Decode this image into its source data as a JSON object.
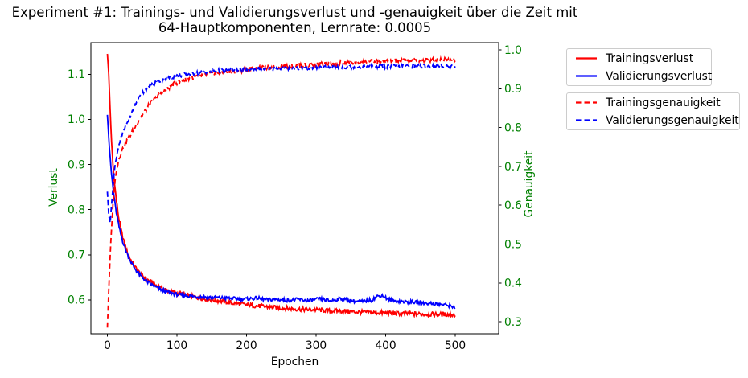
{
  "title": {
    "line1": "Experiment #1: Trainings- und Validierungsverlust und -genauigkeit über die Zeit mit",
    "line2": "64-Hauptkomponenten, Lernrate: 0.0005"
  },
  "colors": {
    "red": "#ff0000",
    "blue": "#0000ff",
    "green": "#008000",
    "black": "#000000",
    "legend_border": "#cccccc"
  },
  "legend": {
    "loss": [
      {
        "label": "Trainingsverlust",
        "color": "red",
        "style": "solid"
      },
      {
        "label": "Validierungsverlust",
        "color": "blue",
        "style": "solid"
      }
    ],
    "accuracy": [
      {
        "label": "Trainingsgenauigkeit",
        "color": "red",
        "style": "dashed"
      },
      {
        "label": "Validierungsgenauigkeit",
        "color": "blue",
        "style": "dashed"
      }
    ]
  },
  "chart_data": {
    "type": "line",
    "title": "Experiment #1: Trainings- und Validierungsverlust und -genauigkeit über die Zeit mit 64-Hauptkomponenten, Lernrate: 0.0005",
    "grid": false,
    "legend_position": "outside-right",
    "axes": {
      "x": {
        "label": "Epochen",
        "ticks": [
          "0",
          "100",
          "200",
          "300",
          "400",
          "500"
        ],
        "range": [
          -23.7,
          562.4
        ]
      },
      "y_left": {
        "label": "Verlust",
        "ticks": [
          "0.6",
          "0.7",
          "0.8",
          "0.9",
          "1.0",
          "1.1"
        ],
        "range": [
          0.525,
          1.17
        ]
      },
      "y_right": {
        "label": "Genauigkeit",
        "ticks": [
          "0.3",
          "0.4",
          "0.5",
          "0.6",
          "0.7",
          "0.8",
          "0.9",
          "1.0"
        ],
        "range": [
          0.269,
          1.019
        ]
      }
    },
    "series": [
      {
        "name": "Trainingsverlust",
        "axis": "left",
        "color": "#ff0000",
        "style": "solid",
        "noise": 0.005,
        "points": [
          [
            0,
            1.145
          ],
          [
            2,
            1.1
          ],
          [
            4,
            1.02
          ],
          [
            6,
            0.95
          ],
          [
            8,
            0.9
          ],
          [
            10,
            0.862
          ],
          [
            13,
            0.82
          ],
          [
            16,
            0.785
          ],
          [
            20,
            0.752
          ],
          [
            24,
            0.728
          ],
          [
            28,
            0.708
          ],
          [
            32,
            0.694
          ],
          [
            36,
            0.682
          ],
          [
            40,
            0.672
          ],
          [
            45,
            0.662
          ],
          [
            50,
            0.654
          ],
          [
            55,
            0.648
          ],
          [
            60,
            0.642
          ],
          [
            70,
            0.632
          ],
          [
            80,
            0.625
          ],
          [
            90,
            0.619
          ],
          [
            100,
            0.615
          ],
          [
            110,
            0.612
          ],
          [
            120,
            0.608
          ],
          [
            135,
            0.604
          ],
          [
            150,
            0.6
          ],
          [
            165,
            0.597
          ],
          [
            180,
            0.593
          ],
          [
            200,
            0.589
          ],
          [
            220,
            0.586
          ],
          [
            240,
            0.583
          ],
          [
            260,
            0.581
          ],
          [
            280,
            0.579
          ],
          [
            300,
            0.578
          ],
          [
            320,
            0.576
          ],
          [
            340,
            0.575
          ],
          [
            360,
            0.573
          ],
          [
            380,
            0.572
          ],
          [
            400,
            0.571
          ],
          [
            420,
            0.57
          ],
          [
            440,
            0.569
          ],
          [
            460,
            0.568
          ],
          [
            480,
            0.568
          ],
          [
            500,
            0.567
          ]
        ]
      },
      {
        "name": "Validierungsverlust",
        "axis": "left",
        "color": "#0000ff",
        "style": "solid",
        "noise": 0.004,
        "points": [
          [
            0,
            1.01
          ],
          [
            3,
            0.935
          ],
          [
            6,
            0.878
          ],
          [
            9,
            0.836
          ],
          [
            12,
            0.802
          ],
          [
            15,
            0.775
          ],
          [
            18,
            0.753
          ],
          [
            22,
            0.73
          ],
          [
            26,
            0.712
          ],
          [
            30,
            0.697
          ],
          [
            34,
            0.684
          ],
          [
            38,
            0.673
          ],
          [
            42,
            0.664
          ],
          [
            46,
            0.656
          ],
          [
            50,
            0.65
          ],
          [
            55,
            0.643
          ],
          [
            60,
            0.637
          ],
          [
            70,
            0.628
          ],
          [
            80,
            0.621
          ],
          [
            90,
            0.616
          ],
          [
            100,
            0.612
          ],
          [
            115,
            0.609
          ],
          [
            130,
            0.607
          ],
          [
            145,
            0.606
          ],
          [
            160,
            0.605
          ],
          [
            180,
            0.603
          ],
          [
            200,
            0.602
          ],
          [
            215,
            0.604
          ],
          [
            230,
            0.6
          ],
          [
            245,
            0.601
          ],
          [
            260,
            0.599
          ],
          [
            275,
            0.601
          ],
          [
            290,
            0.598
          ],
          [
            305,
            0.602
          ],
          [
            320,
            0.598
          ],
          [
            335,
            0.603
          ],
          [
            350,
            0.598
          ],
          [
            365,
            0.596
          ],
          [
            380,
            0.6
          ],
          [
            388,
            0.608
          ],
          [
            395,
            0.61
          ],
          [
            402,
            0.603
          ],
          [
            410,
            0.598
          ],
          [
            420,
            0.597
          ],
          [
            435,
            0.595
          ],
          [
            450,
            0.594
          ],
          [
            465,
            0.592
          ],
          [
            480,
            0.59
          ],
          [
            490,
            0.588
          ],
          [
            500,
            0.584
          ]
        ]
      },
      {
        "name": "Trainingsgenauigkeit",
        "axis": "right",
        "color": "#ff0000",
        "style": "dashed",
        "noise": 0.006,
        "points": [
          [
            0,
            0.285
          ],
          [
            2,
            0.38
          ],
          [
            4,
            0.47
          ],
          [
            6,
            0.54
          ],
          [
            8,
            0.6
          ],
          [
            10,
            0.645
          ],
          [
            13,
            0.69
          ],
          [
            16,
            0.715
          ],
          [
            20,
            0.738
          ],
          [
            24,
            0.752
          ],
          [
            28,
            0.766
          ],
          [
            32,
            0.778
          ],
          [
            36,
            0.79
          ],
          [
            40,
            0.802
          ],
          [
            45,
            0.818
          ],
          [
            50,
            0.832
          ],
          [
            55,
            0.845
          ],
          [
            60,
            0.858
          ],
          [
            65,
            0.868
          ],
          [
            70,
            0.877
          ],
          [
            75,
            0.884
          ],
          [
            80,
            0.891
          ],
          [
            85,
            0.898
          ],
          [
            90,
            0.905
          ],
          [
            95,
            0.911
          ],
          [
            100,
            0.916
          ],
          [
            110,
            0.923
          ],
          [
            120,
            0.928
          ],
          [
            130,
            0.932
          ],
          [
            140,
            0.936
          ],
          [
            150,
            0.939
          ],
          [
            160,
            0.941
          ],
          [
            175,
            0.944
          ],
          [
            190,
            0.947
          ],
          [
            205,
            0.95
          ],
          [
            220,
            0.953
          ],
          [
            235,
            0.955
          ],
          [
            250,
            0.957
          ],
          [
            265,
            0.959
          ],
          [
            280,
            0.961
          ],
          [
            295,
            0.962
          ],
          [
            310,
            0.964
          ],
          [
            325,
            0.965
          ],
          [
            340,
            0.967
          ],
          [
            355,
            0.968
          ],
          [
            370,
            0.969
          ],
          [
            385,
            0.97
          ],
          [
            400,
            0.971
          ],
          [
            415,
            0.972
          ],
          [
            430,
            0.973
          ],
          [
            445,
            0.974
          ],
          [
            460,
            0.974
          ],
          [
            475,
            0.975
          ],
          [
            490,
            0.975
          ],
          [
            500,
            0.976
          ]
        ]
      },
      {
        "name": "Validierungsgenauigkeit",
        "axis": "right",
        "color": "#0000ff",
        "style": "dashed",
        "noise": 0.005,
        "points": [
          [
            0,
            0.635
          ],
          [
            2,
            0.575
          ],
          [
            4,
            0.555
          ],
          [
            6,
            0.6
          ],
          [
            8,
            0.648
          ],
          [
            10,
            0.688
          ],
          [
            13,
            0.725
          ],
          [
            16,
            0.752
          ],
          [
            20,
            0.775
          ],
          [
            24,
            0.793
          ],
          [
            28,
            0.81
          ],
          [
            32,
            0.826
          ],
          [
            36,
            0.842
          ],
          [
            40,
            0.858
          ],
          [
            44,
            0.872
          ],
          [
            48,
            0.884
          ],
          [
            52,
            0.893
          ],
          [
            56,
            0.9
          ],
          [
            60,
            0.906
          ],
          [
            65,
            0.912
          ],
          [
            70,
            0.917
          ],
          [
            75,
            0.92
          ],
          [
            80,
            0.923
          ],
          [
            85,
            0.926
          ],
          [
            90,
            0.929
          ],
          [
            95,
            0.931
          ],
          [
            100,
            0.933
          ],
          [
            110,
            0.936
          ],
          [
            120,
            0.939
          ],
          [
            130,
            0.941
          ],
          [
            145,
            0.944
          ],
          [
            160,
            0.946
          ],
          [
            175,
            0.947
          ],
          [
            190,
            0.949
          ],
          [
            205,
            0.95
          ],
          [
            220,
            0.951
          ],
          [
            240,
            0.952
          ],
          [
            260,
            0.953
          ],
          [
            280,
            0.954
          ],
          [
            300,
            0.955
          ],
          [
            320,
            0.956
          ],
          [
            340,
            0.956
          ],
          [
            360,
            0.957
          ],
          [
            380,
            0.957
          ],
          [
            400,
            0.958
          ],
          [
            420,
            0.958
          ],
          [
            440,
            0.958
          ],
          [
            460,
            0.959
          ],
          [
            480,
            0.958
          ],
          [
            500,
            0.958
          ]
        ]
      }
    ]
  }
}
